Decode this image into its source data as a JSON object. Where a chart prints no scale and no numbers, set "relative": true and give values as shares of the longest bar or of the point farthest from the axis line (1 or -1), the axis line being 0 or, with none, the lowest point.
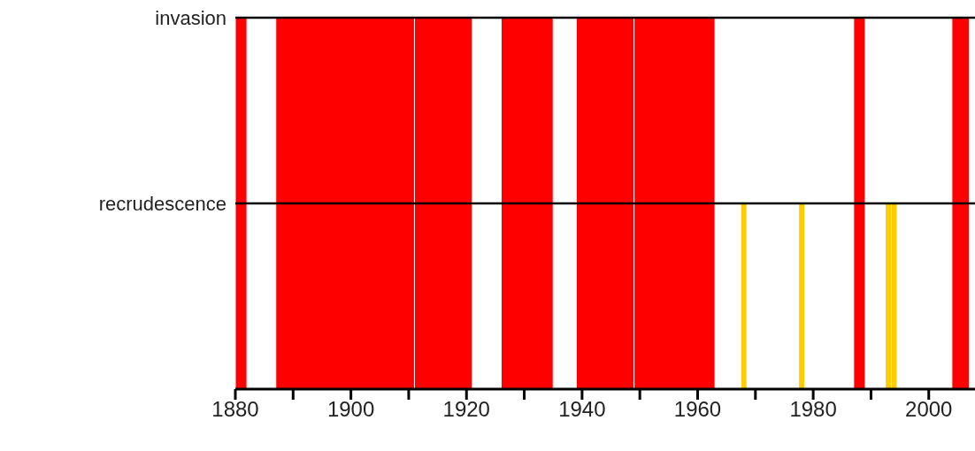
{
  "chart_data": {
    "type": "bar",
    "relative": true,
    "series": [
      {
        "color": "#ffcc00",
        "x": [
          1968,
          1978,
          1993,
          1994
        ],
        "values": [
          1,
          1,
          1,
          1
        ]
      }
    ],
    "bands": [
      {
        "axis": "x",
        "from": 1880,
        "to": 1882,
        "color": "#ff0000"
      },
      {
        "axis": "x",
        "from": 1887,
        "to": 1911,
        "color": "#ff0000"
      },
      {
        "axis": "x",
        "from": 1911,
        "to": 1921,
        "color": "#ff0000"
      },
      {
        "axis": "x",
        "from": 1926,
        "to": 1935,
        "color": "#ff0000"
      },
      {
        "axis": "x",
        "from": 1939,
        "to": 1949,
        "color": "#ff0000"
      },
      {
        "axis": "x",
        "from": 1949,
        "to": 1963,
        "color": "#ff0000"
      },
      {
        "axis": "x",
        "from": 1987,
        "to": 1989,
        "color": "#ff0000"
      },
      {
        "axis": "x",
        "from": 2004,
        "to": 2007,
        "color": "#ff0000"
      }
    ],
    "xlim": [
      1880,
      2008
    ],
    "xticks": [
      1880,
      {
        "value": 1890,
        "label": null
      },
      1900,
      {
        "value": 1910,
        "label": null
      },
      1920,
      {
        "value": 1930,
        "label": null
      },
      1940,
      {
        "value": 1950,
        "label": null
      },
      1960,
      {
        "value": 1970,
        "label": null
      },
      1980,
      {
        "value": 1990,
        "label": null
      },
      2000
    ],
    "ref_lines": [
      {
        "axis": "y",
        "value": 2,
        "label": "invasion",
        "color": "#000000"
      },
      {
        "axis": "y",
        "value": 1,
        "label": "recrudescence",
        "color": "#000000"
      }
    ],
    "legend": false
  }
}
